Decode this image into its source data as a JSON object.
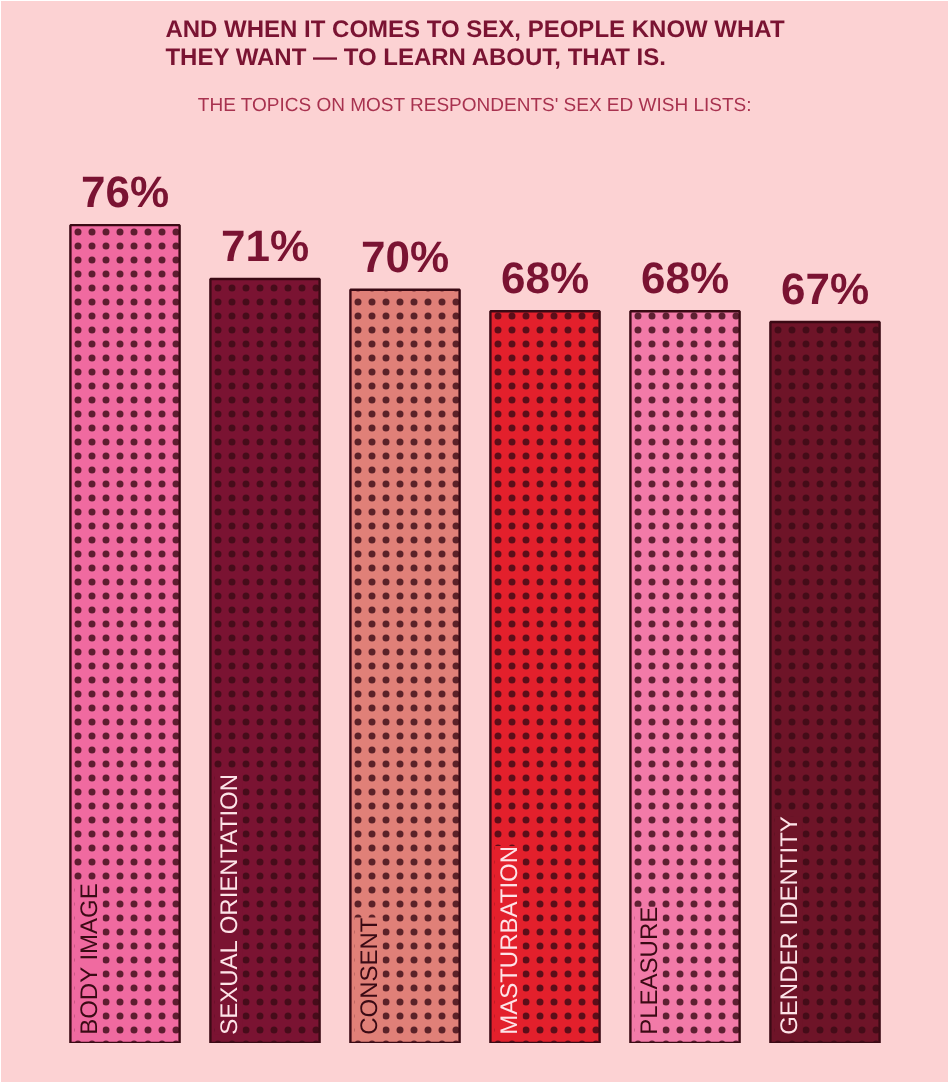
{
  "chart_data": {
    "type": "bar",
    "title": "AND WHEN IT COMES TO SEX, PEOPLE KNOW WHAT THEY WANT — TO LEARN ABOUT, THAT IS.",
    "subtitle": "THE TOPICS ON MOST RESPONDENTS' SEX ED WISH LISTS:",
    "categories": [
      "BODY IMAGE",
      "SEXUAL ORIENTATION",
      "CONSENT",
      "MASTURBATION",
      "PLEASURE",
      "GENDER IDENTITY"
    ],
    "values": [
      76,
      71,
      70,
      68,
      68,
      67
    ],
    "value_labels": [
      "76%",
      "71%",
      "70%",
      "68%",
      "68%",
      "67%"
    ],
    "colors": [
      "#f06aa0",
      "#7a1332",
      "#e08078",
      "#e3202c",
      "#f27aa8",
      "#6e1428"
    ]
  }
}
